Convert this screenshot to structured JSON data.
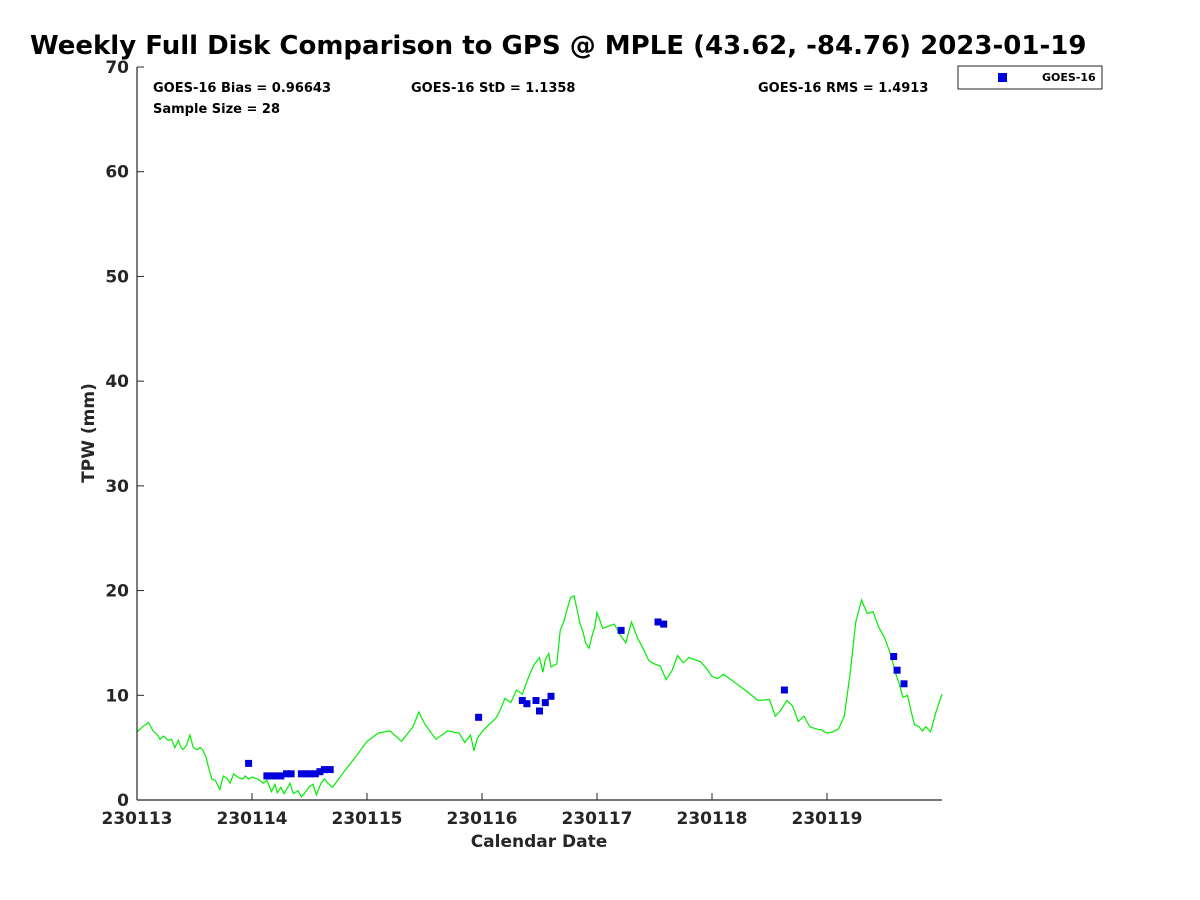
{
  "chart_data": {
    "type": "scatter",
    "title": "Weekly Full Disk Comparison to GPS @ MPLE (43.62, -84.76) 2023-01-19",
    "xlabel": "Calendar Date",
    "ylabel": "TPW (mm)",
    "xlim": [
      0,
      7
    ],
    "ylim": [
      0,
      70
    ],
    "x_ticks": [
      0,
      1,
      2,
      3,
      4,
      5,
      6
    ],
    "x_tick_labels": [
      "230113",
      "230114",
      "230115",
      "230116",
      "230117",
      "230118",
      "230119"
    ],
    "y_ticks": [
      0,
      10,
      20,
      30,
      40,
      50,
      60,
      70
    ],
    "y_tick_labels": [
      "0",
      "10",
      "20",
      "30",
      "40",
      "50",
      "60",
      "70"
    ],
    "legend": {
      "location": "top-right outside",
      "entries": [
        "GOES-16"
      ]
    },
    "stats": {
      "bias": "GOES-16 Bias = 0.96643",
      "std": "GOES-16 StD = 1.1358",
      "rms": "GOES-16 RMS = 1.4913",
      "sample_size": "Sample Size = 28"
    },
    "colors": {
      "gps_line": "#00ee00",
      "goes_marker": "#0000dd",
      "axis": "#262626"
    },
    "series": [
      {
        "name": "GOES-16",
        "kind": "scatter",
        "x": [
          0.97,
          1.13,
          1.17,
          1.21,
          1.25,
          1.3,
          1.34,
          1.43,
          1.47,
          1.51,
          1.55,
          1.59,
          1.63,
          1.68,
          2.97,
          3.35,
          3.39,
          3.47,
          3.5,
          3.55,
          3.6,
          4.21,
          4.53,
          4.58,
          5.63,
          6.58,
          6.61,
          6.67
        ],
        "y": [
          3.5,
          2.3,
          2.3,
          2.3,
          2.3,
          2.5,
          2.5,
          2.5,
          2.5,
          2.5,
          2.5,
          2.7,
          2.9,
          2.9,
          7.9,
          9.5,
          9.2,
          9.5,
          8.5,
          9.3,
          9.9,
          16.2,
          17.0,
          16.8,
          10.5,
          13.7,
          12.4,
          11.1
        ]
      },
      {
        "name": "GPS",
        "kind": "line",
        "x": [
          0.0,
          0.05,
          0.1,
          0.14,
          0.18,
          0.2,
          0.23,
          0.27,
          0.3,
          0.33,
          0.36,
          0.38,
          0.4,
          0.43,
          0.46,
          0.49,
          0.52,
          0.55,
          0.57,
          0.6,
          0.62,
          0.65,
          0.68,
          0.72,
          0.75,
          0.78,
          0.81,
          0.84,
          0.86,
          0.89,
          0.92,
          0.94,
          0.97,
          1.0,
          1.05,
          1.1,
          1.13,
          1.17,
          1.2,
          1.22,
          1.25,
          1.28,
          1.3,
          1.33,
          1.36,
          1.4,
          1.43,
          1.46,
          1.5,
          1.53,
          1.56,
          1.6,
          1.63,
          1.66,
          1.7,
          1.8,
          1.9,
          2.0,
          2.1,
          2.2,
          2.3,
          2.4,
          2.45,
          2.5,
          2.6,
          2.7,
          2.8,
          2.85,
          2.9,
          2.93,
          2.96,
          3.0,
          3.05,
          3.1,
          3.12,
          3.15,
          3.2,
          3.25,
          3.3,
          3.35,
          3.4,
          3.45,
          3.5,
          3.53,
          3.55,
          3.58,
          3.6,
          3.65,
          3.68,
          3.71,
          3.74,
          3.77,
          3.8,
          3.83,
          3.85,
          3.88,
          3.9,
          3.93,
          3.96,
          3.98,
          4.0,
          4.05,
          4.1,
          4.15,
          4.2,
          4.25,
          4.3,
          4.35,
          4.4,
          4.45,
          4.5,
          4.55,
          4.6,
          4.65,
          4.7,
          4.75,
          4.8,
          4.85,
          4.9,
          4.95,
          5.0,
          5.05,
          5.1,
          5.2,
          5.3,
          5.4,
          5.5,
          5.55,
          5.6,
          5.65,
          5.7,
          5.75,
          5.8,
          5.85,
          5.9,
          5.95,
          6.0,
          6.05,
          6.1,
          6.15,
          6.2,
          6.25,
          6.3,
          6.35,
          6.4,
          6.45,
          6.5,
          6.55,
          6.6,
          6.63,
          6.66,
          6.7,
          6.73,
          6.76,
          6.8,
          6.83,
          6.86,
          6.9,
          6.95,
          7.0
        ],
        "y": [
          6.5,
          7.0,
          7.4,
          6.6,
          6.2,
          5.8,
          6.1,
          5.7,
          5.8,
          5.0,
          5.7,
          5.1,
          4.8,
          5.2,
          6.2,
          5.0,
          4.8,
          5.0,
          4.8,
          4.1,
          3.2,
          2.0,
          1.9,
          1.0,
          2.3,
          2.1,
          1.6,
          2.5,
          2.3,
          2.1,
          2.0,
          2.3,
          2.0,
          2.2,
          2.0,
          1.6,
          1.9,
          0.8,
          1.5,
          0.7,
          1.2,
          0.6,
          1.0,
          1.6,
          0.6,
          0.9,
          0.3,
          0.7,
          1.3,
          1.5,
          0.5,
          1.6,
          2.0,
          1.6,
          1.2,
          2.7,
          4.1,
          5.6,
          6.4,
          6.6,
          5.6,
          7.0,
          8.4,
          7.3,
          5.8,
          6.6,
          6.4,
          5.5,
          6.2,
          4.7,
          5.9,
          6.5,
          7.1,
          7.6,
          7.8,
          8.4,
          9.7,
          9.3,
          10.5,
          10.1,
          11.6,
          12.9,
          13.6,
          12.2,
          13.4,
          14.0,
          12.7,
          13.0,
          16.2,
          17.0,
          18.2,
          19.3,
          19.5,
          18.0,
          16.9,
          16.0,
          15.0,
          14.5,
          15.8,
          16.5,
          17.9,
          16.4,
          16.6,
          16.8,
          15.8,
          15.0,
          17.0,
          15.5,
          14.5,
          13.3,
          13.0,
          12.8,
          11.5,
          12.3,
          13.8,
          13.1,
          13.6,
          13.4,
          13.2,
          12.6,
          11.8,
          11.6,
          12.0,
          11.2,
          10.4,
          9.5,
          9.6,
          8.0,
          8.6,
          9.5,
          9.0,
          7.5,
          8.0,
          7.0,
          6.8,
          6.7,
          6.4,
          6.5,
          6.8,
          8.0,
          12.0,
          17.0,
          19.1,
          17.8,
          18.0,
          16.5,
          15.5,
          14.0,
          12.0,
          11.0,
          9.8,
          10.0,
          8.5,
          7.2,
          7.0,
          6.6,
          7.0,
          6.5,
          8.5,
          10.1
        ]
      }
    ]
  }
}
